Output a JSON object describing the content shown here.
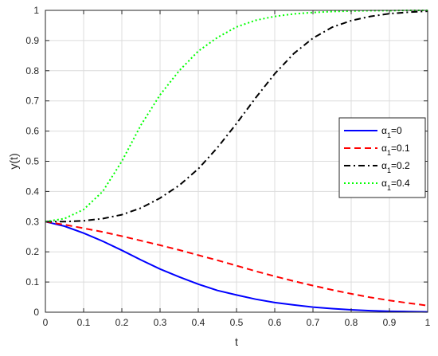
{
  "chart_data": {
    "type": "line",
    "title": "",
    "xlabel": "t",
    "ylabel": "y(t)",
    "xlim": [
      0,
      1
    ],
    "ylim": [
      0,
      1
    ],
    "xticks": [
      "0",
      "0.1",
      "0.2",
      "0.3",
      "0.4",
      "0.5",
      "0.6",
      "0.7",
      "0.8",
      "0.9",
      "1"
    ],
    "yticks": [
      "0",
      "0.1",
      "0.2",
      "0.3",
      "0.4",
      "0.5",
      "0.6",
      "0.7",
      "0.8",
      "0.9",
      "1"
    ],
    "grid": true,
    "legend_position": "right",
    "x": [
      0,
      0.05,
      0.1,
      0.15,
      0.2,
      0.25,
      0.3,
      0.35,
      0.4,
      0.45,
      0.5,
      0.55,
      0.6,
      0.65,
      0.7,
      0.75,
      0.8,
      0.85,
      0.9,
      0.95,
      1.0
    ],
    "series": [
      {
        "legend_prefix": "α",
        "legend_subscript": "1",
        "legend_suffix": "=0",
        "color": "#0000ff",
        "style": "solid",
        "values": [
          0.3,
          0.285,
          0.262,
          0.235,
          0.205,
          0.173,
          0.143,
          0.117,
          0.093,
          0.072,
          0.057,
          0.043,
          0.032,
          0.024,
          0.017,
          0.012,
          0.008,
          0.005,
          0.003,
          0.002,
          0.001
        ]
      },
      {
        "legend_prefix": "α",
        "legend_subscript": "1",
        "legend_suffix": "=0.1",
        "color": "#ff0000",
        "style": "dashed",
        "values": [
          0.3,
          0.29,
          0.278,
          0.266,
          0.252,
          0.237,
          0.222,
          0.206,
          0.189,
          0.172,
          0.154,
          0.136,
          0.119,
          0.103,
          0.088,
          0.074,
          0.061,
          0.049,
          0.039,
          0.03,
          0.022
        ]
      },
      {
        "legend_prefix": "α",
        "legend_subscript": "1",
        "legend_suffix": "=0.2",
        "color": "#000000",
        "style": "dashdot",
        "values": [
          0.3,
          0.3,
          0.303,
          0.31,
          0.323,
          0.345,
          0.378,
          0.42,
          0.475,
          0.545,
          0.625,
          0.71,
          0.79,
          0.857,
          0.908,
          0.944,
          0.966,
          0.98,
          0.989,
          0.994,
          0.997
        ]
      },
      {
        "legend_prefix": "α",
        "legend_subscript": "1",
        "legend_suffix": "=0.4",
        "color": "#00ff00",
        "style": "dotted",
        "values": [
          0.3,
          0.31,
          0.34,
          0.4,
          0.5,
          0.62,
          0.72,
          0.8,
          0.865,
          0.91,
          0.945,
          0.967,
          0.98,
          0.988,
          0.993,
          0.996,
          0.998,
          0.999,
          0.999,
          1.0,
          1.0
        ]
      }
    ]
  }
}
